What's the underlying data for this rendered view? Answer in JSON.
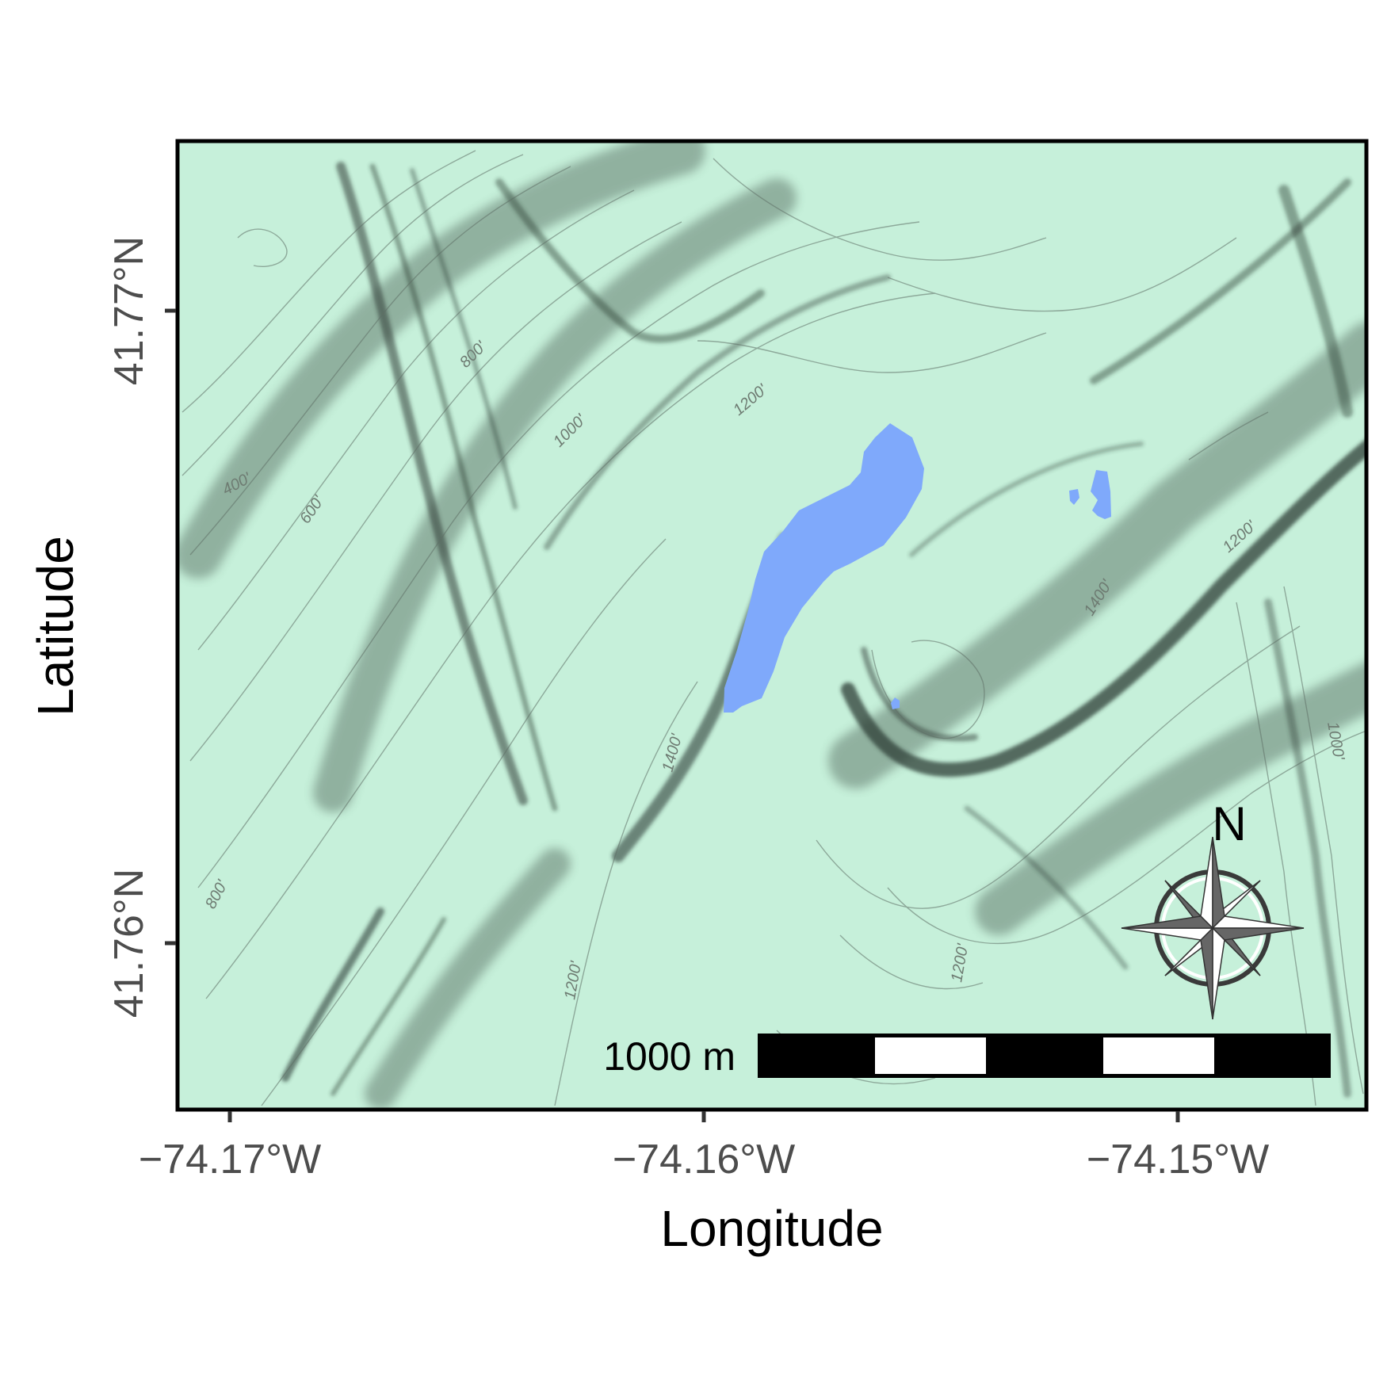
{
  "map": {
    "x_axis": {
      "title": "Longitude",
      "ticks": [
        "−74.17°W",
        "−74.16°W",
        "−74.15°W"
      ],
      "tick_values": [
        -74.17,
        -74.16,
        -74.15
      ],
      "range": [
        -74.1712,
        -74.1462
      ]
    },
    "y_axis": {
      "title": "Latitude",
      "ticks": [
        "41.77°N",
        "41.76°N"
      ],
      "tick_values": [
        41.77,
        41.76
      ],
      "range": [
        41.7547,
        41.7727
      ]
    },
    "contour_labels": [
      "400'",
      "600'",
      "800'",
      "1000'",
      "1200'",
      "1400'",
      "1200'",
      "1400'",
      "1200'",
      "1000'",
      "1200'",
      "800'"
    ],
    "north_arrow": {
      "label": "N"
    },
    "scale_bar": {
      "label": "1000 m"
    },
    "colors": {
      "terrain": "#c6f0da",
      "water": "#7fa9fb",
      "hillshade": "#2f3d36",
      "frame": "#000000"
    }
  }
}
